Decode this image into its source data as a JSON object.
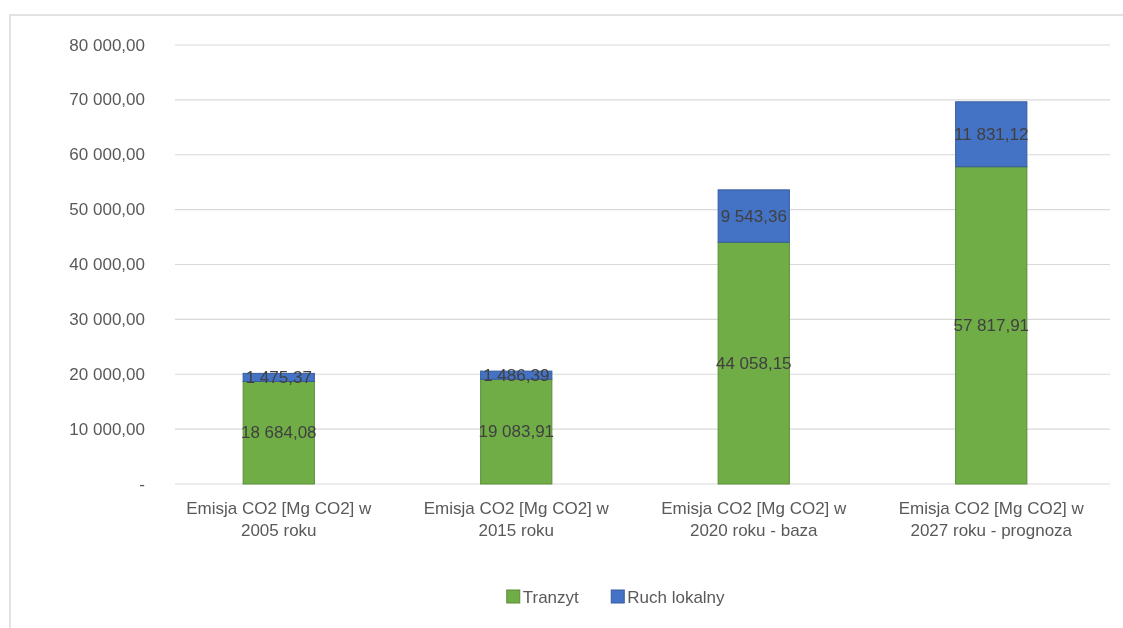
{
  "chart_data": {
    "type": "bar",
    "stacked": true,
    "categories": [
      "Emisja CO2 [Mg CO2] w 2005 roku",
      "Emisja CO2 [Mg CO2] w 2015 roku",
      "Emisja CO2 [Mg CO2] w 2020 roku - baza",
      "Emisja CO2 [Mg CO2] w 2027 roku - prognoza"
    ],
    "series": [
      {
        "name": "Tranzyt",
        "color": "#70ad47",
        "values": [
          18684.08,
          19083.91,
          44058.15,
          57817.91
        ],
        "value_labels": [
          "18 684,08",
          "19 083,91",
          "44 058,15",
          "57 817,91"
        ]
      },
      {
        "name": "Ruch lokalny",
        "color": "#4472c4",
        "values": [
          1475.37,
          1486.39,
          9543.36,
          11831.12
        ],
        "value_labels": [
          "1 475,37",
          "1 486,39",
          "9 543,36",
          "11 831,12"
        ]
      }
    ],
    "ylim": [
      0,
      80000
    ],
    "yticks": [
      {
        "value": 0,
        "label": "-"
      },
      {
        "value": 10000,
        "label": "10 000,00"
      },
      {
        "value": 20000,
        "label": "20 000,00"
      },
      {
        "value": 30000,
        "label": "30 000,00"
      },
      {
        "value": 40000,
        "label": "40 000,00"
      },
      {
        "value": 50000,
        "label": "50 000,00"
      },
      {
        "value": 60000,
        "label": "60 000,00"
      },
      {
        "value": 70000,
        "label": "70 000,00"
      },
      {
        "value": 80000,
        "label": "80 000,00"
      }
    ],
    "grid": "y",
    "legend": "bottom"
  }
}
